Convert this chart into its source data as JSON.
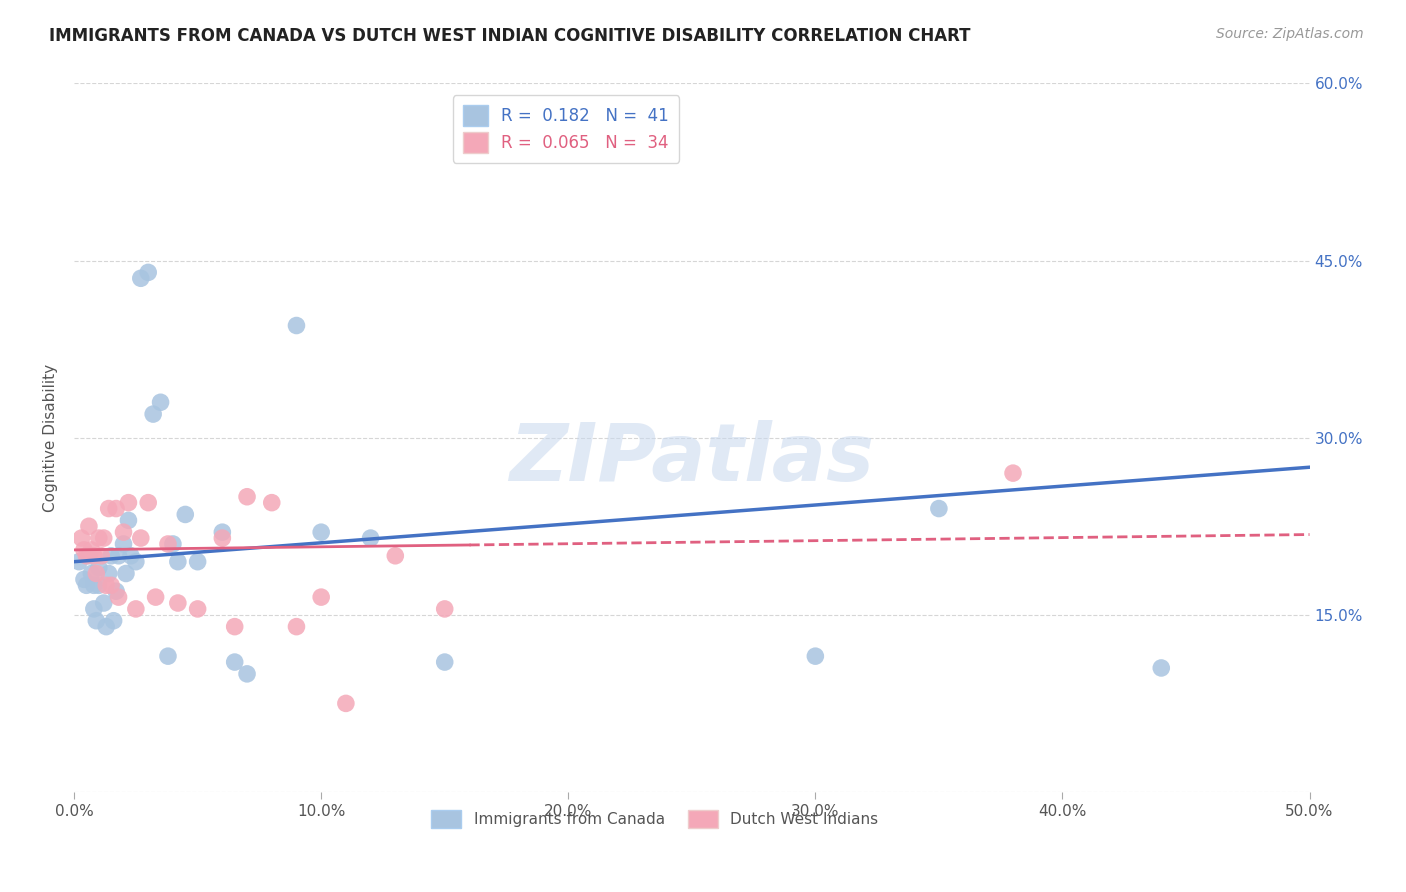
{
  "title": "IMMIGRANTS FROM CANADA VS DUTCH WEST INDIAN COGNITIVE DISABILITY CORRELATION CHART",
  "source": "Source: ZipAtlas.com",
  "ylabel": "Cognitive Disability",
  "xlim": [
    0.0,
    0.5
  ],
  "ylim": [
    0.0,
    0.6
  ],
  "xticks": [
    0.0,
    0.1,
    0.2,
    0.3,
    0.4,
    0.5
  ],
  "yticks": [
    0.0,
    0.15,
    0.3,
    0.45,
    0.6
  ],
  "xticklabels": [
    "0.0%",
    "10.0%",
    "20.0%",
    "30.0%",
    "40.0%",
    "50.0%"
  ],
  "yticklabels_right": [
    "",
    "15.0%",
    "30.0%",
    "45.0%",
    "60.0%"
  ],
  "legend1_label": "R =  0.182   N =  41",
  "legend2_label": "R =  0.065   N =  34",
  "blue_color": "#a8c4e0",
  "pink_color": "#f4a8b8",
  "line_blue": "#4472c4",
  "line_pink": "#e06080",
  "watermark": "ZIPatlas",
  "canada_x": [
    0.002,
    0.004,
    0.005,
    0.006,
    0.007,
    0.008,
    0.008,
    0.009,
    0.01,
    0.01,
    0.012,
    0.013,
    0.014,
    0.015,
    0.016,
    0.017,
    0.018,
    0.02,
    0.021,
    0.022,
    0.023,
    0.025,
    0.027,
    0.03,
    0.032,
    0.035,
    0.038,
    0.04,
    0.042,
    0.045,
    0.05,
    0.06,
    0.065,
    0.07,
    0.09,
    0.1,
    0.12,
    0.15,
    0.3,
    0.35,
    0.44
  ],
  "canada_y": [
    0.195,
    0.18,
    0.175,
    0.2,
    0.185,
    0.175,
    0.155,
    0.145,
    0.19,
    0.175,
    0.16,
    0.14,
    0.185,
    0.2,
    0.145,
    0.17,
    0.2,
    0.21,
    0.185,
    0.23,
    0.2,
    0.195,
    0.435,
    0.44,
    0.32,
    0.33,
    0.115,
    0.21,
    0.195,
    0.235,
    0.195,
    0.22,
    0.11,
    0.1,
    0.395,
    0.22,
    0.215,
    0.11,
    0.115,
    0.24,
    0.105
  ],
  "dutch_x": [
    0.003,
    0.004,
    0.005,
    0.006,
    0.007,
    0.008,
    0.009,
    0.01,
    0.011,
    0.012,
    0.013,
    0.014,
    0.015,
    0.017,
    0.018,
    0.02,
    0.022,
    0.025,
    0.027,
    0.03,
    0.033,
    0.038,
    0.042,
    0.05,
    0.06,
    0.065,
    0.07,
    0.08,
    0.09,
    0.1,
    0.11,
    0.13,
    0.15,
    0.38
  ],
  "dutch_y": [
    0.215,
    0.205,
    0.2,
    0.225,
    0.205,
    0.2,
    0.185,
    0.215,
    0.2,
    0.215,
    0.175,
    0.24,
    0.175,
    0.24,
    0.165,
    0.22,
    0.245,
    0.155,
    0.215,
    0.245,
    0.165,
    0.21,
    0.16,
    0.155,
    0.215,
    0.14,
    0.25,
    0.245,
    0.14,
    0.165,
    0.075,
    0.2,
    0.155,
    0.27
  ]
}
